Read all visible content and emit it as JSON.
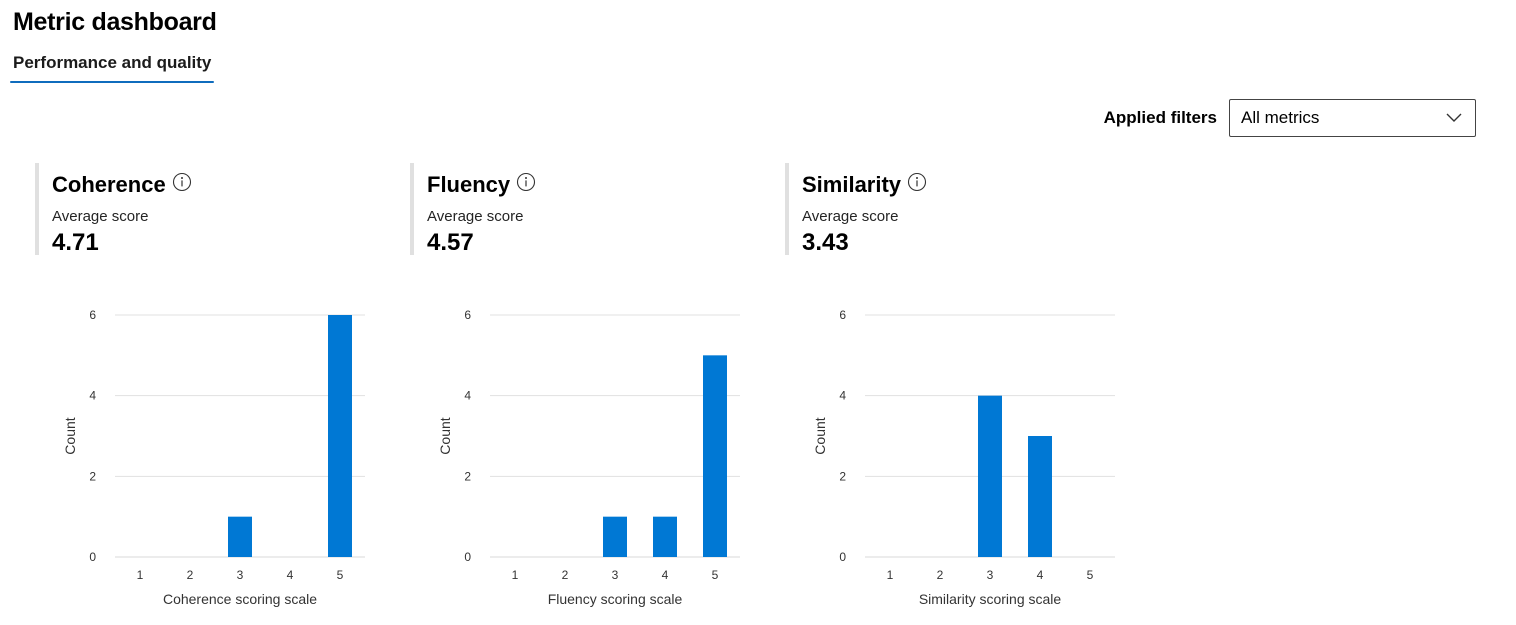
{
  "page": {
    "title": "Metric dashboard",
    "tab_label": "Performance and quality"
  },
  "filters": {
    "label": "Applied filters",
    "selected": "All metrics"
  },
  "colors": {
    "bar": "#0078d4",
    "grid": "#e1e1e1",
    "tab_underline": "#0f6cbd"
  },
  "cards": [
    {
      "name": "Coherence",
      "avg_label": "Average score",
      "avg_value": "4.71"
    },
    {
      "name": "Fluency",
      "avg_label": "Average score",
      "avg_value": "4.57"
    },
    {
      "name": "Similarity",
      "avg_label": "Average score",
      "avg_value": "3.43"
    }
  ],
  "chart_data": [
    {
      "type": "bar",
      "categories": [
        "1",
        "2",
        "3",
        "4",
        "5"
      ],
      "values": [
        0,
        0,
        1,
        0,
        6
      ],
      "xlabel": "Coherence scoring scale",
      "ylabel": "Count",
      "yticks": [
        "0",
        "2",
        "4",
        "6"
      ],
      "ylim": [
        0,
        6
      ],
      "grid": true
    },
    {
      "type": "bar",
      "categories": [
        "1",
        "2",
        "3",
        "4",
        "5"
      ],
      "values": [
        0,
        0,
        1,
        1,
        5
      ],
      "xlabel": "Fluency scoring scale",
      "ylabel": "Count",
      "yticks": [
        "0",
        "2",
        "4",
        "6"
      ],
      "ylim": [
        0,
        6
      ],
      "grid": true
    },
    {
      "type": "bar",
      "categories": [
        "1",
        "2",
        "3",
        "4",
        "5"
      ],
      "values": [
        0,
        0,
        4,
        3,
        0
      ],
      "xlabel": "Similarity scoring scale",
      "ylabel": "Count",
      "yticks": [
        "0",
        "2",
        "4",
        "6"
      ],
      "ylim": [
        0,
        6
      ],
      "grid": true
    }
  ]
}
